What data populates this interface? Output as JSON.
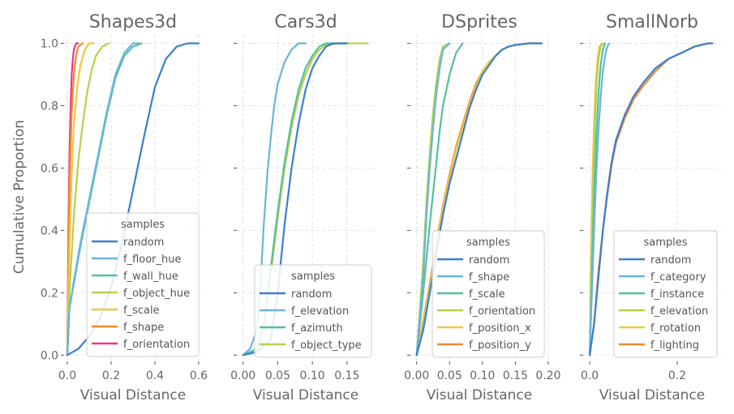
{
  "chart_data": [
    {
      "type": "line",
      "title": "Shapes3d",
      "xlabel": "Visual Distance",
      "ylabel": "Cumulative Proportion",
      "xlim": [
        -0.015,
        0.615
      ],
      "ylim": [
        -0.02,
        1.03
      ],
      "xticks": [
        0.0,
        0.2,
        0.4,
        0.6
      ],
      "xticklabels": [
        "0.0",
        "0.2",
        "0.4",
        "0.6"
      ],
      "yticks": [
        0.0,
        0.2,
        0.4,
        0.6,
        0.8,
        1.0
      ],
      "yticklabels": [
        "0.0",
        "0.2",
        "0.4",
        "0.6",
        "0.8",
        "1.0"
      ],
      "grid": true,
      "legend": {
        "title": "samples",
        "placement": "lower-right"
      },
      "series": [
        {
          "name": "random",
          "color": "#3a7fcf",
          "x": [
            0.0,
            0.05,
            0.1,
            0.15,
            0.2,
            0.25,
            0.3,
            0.35,
            0.4,
            0.45,
            0.5,
            0.55,
            0.6
          ],
          "y": [
            0.0,
            0.02,
            0.06,
            0.12,
            0.22,
            0.36,
            0.53,
            0.7,
            0.86,
            0.95,
            0.99,
            1.0,
            1.0
          ]
        },
        {
          "name": "f_floor_hue",
          "color": "#6ab4dd",
          "x": [
            0.0,
            0.01,
            0.03,
            0.06,
            0.1,
            0.14,
            0.18,
            0.22,
            0.26,
            0.3,
            0.33
          ],
          "y": [
            0.0,
            0.15,
            0.24,
            0.36,
            0.5,
            0.64,
            0.78,
            0.9,
            0.97,
            1.0,
            1.0
          ]
        },
        {
          "name": "f_wall_hue",
          "color": "#55bfa0",
          "x": [
            0.0,
            0.01,
            0.03,
            0.06,
            0.1,
            0.14,
            0.18,
            0.22,
            0.26,
            0.3,
            0.34
          ],
          "y": [
            0.0,
            0.15,
            0.23,
            0.35,
            0.49,
            0.63,
            0.77,
            0.89,
            0.96,
            0.99,
            1.0
          ]
        },
        {
          "name": "f_object_hue",
          "color": "#b3d34a",
          "x": [
            0.0,
            0.01,
            0.03,
            0.05,
            0.07,
            0.09,
            0.11,
            0.13,
            0.16,
            0.19
          ],
          "y": [
            0.0,
            0.2,
            0.45,
            0.62,
            0.74,
            0.84,
            0.91,
            0.96,
            0.99,
            1.0
          ]
        },
        {
          "name": "f_scale",
          "color": "#f3c540",
          "x": [
            0.0,
            0.01,
            0.02,
            0.03,
            0.045,
            0.06,
            0.08,
            0.1,
            0.12
          ],
          "y": [
            0.0,
            0.35,
            0.58,
            0.74,
            0.86,
            0.93,
            0.98,
            1.0,
            1.0
          ]
        },
        {
          "name": "f_shape",
          "color": "#ee8a2f",
          "x": [
            0.0,
            0.005,
            0.01,
            0.02,
            0.03,
            0.04,
            0.05,
            0.07
          ],
          "y": [
            0.0,
            0.3,
            0.55,
            0.78,
            0.9,
            0.96,
            0.99,
            1.0
          ]
        },
        {
          "name": "f_orientation",
          "color": "#e8388f",
          "x": [
            0.0,
            0.005,
            0.01,
            0.015,
            0.02,
            0.025,
            0.03,
            0.04,
            0.05
          ],
          "y": [
            0.0,
            0.4,
            0.65,
            0.8,
            0.9,
            0.95,
            0.98,
            1.0,
            1.0
          ]
        }
      ]
    },
    {
      "type": "line",
      "title": "Cars3d",
      "xlabel": "Visual Distance",
      "xlim": [
        -0.009,
        0.19
      ],
      "ylim": [
        -0.02,
        1.03
      ],
      "xticks": [
        0.0,
        0.05,
        0.1,
        0.15
      ],
      "xticklabels": [
        "0.00",
        "0.05",
        "0.10",
        "0.15"
      ],
      "yticks": [
        0.0,
        0.2,
        0.4,
        0.6,
        0.8,
        1.0
      ],
      "grid": true,
      "legend": {
        "title": "samples",
        "placement": "lower-right"
      },
      "series": [
        {
          "name": "random",
          "color": "#3a7fcf",
          "x": [
            0.0,
            0.02,
            0.04,
            0.05,
            0.06,
            0.07,
            0.08,
            0.09,
            0.1,
            0.11,
            0.12,
            0.13,
            0.14,
            0.15
          ],
          "y": [
            0.0,
            0.01,
            0.05,
            0.2,
            0.42,
            0.6,
            0.74,
            0.85,
            0.92,
            0.96,
            0.99,
            1.0,
            1.0,
            1.0
          ]
        },
        {
          "name": "f_elevation",
          "color": "#6ab4dd",
          "x": [
            0.0,
            0.01,
            0.02,
            0.025,
            0.03,
            0.035,
            0.04,
            0.045,
            0.05,
            0.06,
            0.07,
            0.08,
            0.09
          ],
          "y": [
            0.0,
            0.02,
            0.08,
            0.22,
            0.42,
            0.58,
            0.7,
            0.8,
            0.87,
            0.94,
            0.98,
            1.0,
            1.0
          ]
        },
        {
          "name": "f_azimuth",
          "color": "#55bfa0",
          "x": [
            0.0,
            0.02,
            0.03,
            0.04,
            0.05,
            0.06,
            0.07,
            0.08,
            0.09,
            0.1,
            0.11,
            0.12,
            0.15
          ],
          "y": [
            0.0,
            0.02,
            0.1,
            0.28,
            0.46,
            0.62,
            0.75,
            0.85,
            0.92,
            0.96,
            0.99,
            1.0,
            1.0
          ]
        },
        {
          "name": "f_object_type",
          "color": "#b3d34a",
          "x": [
            0.0,
            0.02,
            0.03,
            0.04,
            0.05,
            0.06,
            0.07,
            0.08,
            0.09,
            0.1,
            0.11,
            0.12,
            0.14,
            0.18
          ],
          "y": [
            0.0,
            0.02,
            0.09,
            0.26,
            0.44,
            0.6,
            0.73,
            0.83,
            0.9,
            0.95,
            0.98,
            0.995,
            1.0,
            1.0
          ]
        }
      ]
    },
    {
      "type": "line",
      "title": "DSprites",
      "xlabel": "Visual Distance",
      "xlim": [
        -0.0095,
        0.2
      ],
      "ylim": [
        -0.02,
        1.03
      ],
      "xticks": [
        0.0,
        0.05,
        0.1,
        0.15,
        0.2
      ],
      "xticklabels": [
        "0.00",
        "0.05",
        "0.10",
        "0.15",
        "0.20"
      ],
      "yticks": [
        0.0,
        0.2,
        0.4,
        0.6,
        0.8,
        1.0
      ],
      "grid": true,
      "legend": {
        "title": "samples",
        "placement": "lower-right"
      },
      "series": [
        {
          "name": "random",
          "color": "#3a7fcf",
          "x": [
            0.0,
            0.01,
            0.02,
            0.03,
            0.04,
            0.05,
            0.06,
            0.07,
            0.08,
            0.09,
            0.1,
            0.11,
            0.12,
            0.13,
            0.14,
            0.15,
            0.17,
            0.19
          ],
          "y": [
            0.0,
            0.08,
            0.2,
            0.33,
            0.45,
            0.55,
            0.63,
            0.71,
            0.79,
            0.85,
            0.9,
            0.93,
            0.96,
            0.98,
            0.99,
            0.995,
            1.0,
            1.0
          ]
        },
        {
          "name": "f_shape",
          "color": "#6ab4dd",
          "x": [
            0.0,
            0.01,
            0.015,
            0.02,
            0.025,
            0.03,
            0.035,
            0.04,
            0.05
          ],
          "y": [
            0.0,
            0.25,
            0.45,
            0.6,
            0.73,
            0.84,
            0.92,
            0.98,
            1.0
          ]
        },
        {
          "name": "f_scale",
          "color": "#55bfa0",
          "x": [
            0.0,
            0.01,
            0.02,
            0.03,
            0.035,
            0.04,
            0.05,
            0.06,
            0.07
          ],
          "y": [
            0.0,
            0.2,
            0.42,
            0.62,
            0.72,
            0.8,
            0.9,
            0.97,
            1.0
          ]
        },
        {
          "name": "f_orientation",
          "color": "#b3d34a",
          "x": [
            0.0,
            0.01,
            0.015,
            0.02,
            0.025,
            0.03,
            0.035,
            0.04,
            0.05
          ],
          "y": [
            0.0,
            0.3,
            0.5,
            0.65,
            0.78,
            0.88,
            0.95,
            0.99,
            1.0
          ]
        },
        {
          "name": "f_position_x",
          "color": "#f3c540",
          "x": [
            0.0,
            0.01,
            0.02,
            0.03,
            0.04,
            0.05,
            0.06,
            0.07,
            0.08,
            0.09,
            0.1,
            0.11,
            0.12,
            0.13,
            0.14,
            0.15,
            0.17,
            0.19
          ],
          "y": [
            0.0,
            0.1,
            0.22,
            0.35,
            0.47,
            0.57,
            0.66,
            0.73,
            0.8,
            0.86,
            0.91,
            0.94,
            0.96,
            0.98,
            0.99,
            0.995,
            1.0,
            1.0
          ]
        },
        {
          "name": "f_position_y",
          "color": "#ee8a2f",
          "x": [
            0.0,
            0.01,
            0.02,
            0.03,
            0.04,
            0.05,
            0.06,
            0.07,
            0.08,
            0.09,
            0.1,
            0.11,
            0.12,
            0.13,
            0.14,
            0.15,
            0.17,
            0.19
          ],
          "y": [
            0.0,
            0.11,
            0.23,
            0.36,
            0.48,
            0.58,
            0.67,
            0.74,
            0.81,
            0.87,
            0.91,
            0.94,
            0.96,
            0.98,
            0.99,
            0.995,
            1.0,
            1.0
          ]
        }
      ]
    },
    {
      "type": "line",
      "title": "SmallNorb",
      "xlabel": "Visual Distance",
      "xlim": [
        -0.015,
        0.3
      ],
      "ylim": [
        -0.02,
        1.03
      ],
      "xticks": [
        0.0,
        0.2
      ],
      "xticklabels": [
        "0.0",
        "0.2"
      ],
      "yticks": [
        0.0,
        0.2,
        0.4,
        0.6,
        0.8,
        1.0
      ],
      "grid": true,
      "legend": {
        "title": "samples",
        "placement": "lower-right"
      },
      "series": [
        {
          "name": "random",
          "color": "#3a7fcf",
          "x": [
            0.0,
            0.01,
            0.02,
            0.03,
            0.04,
            0.05,
            0.06,
            0.08,
            0.1,
            0.12,
            0.15,
            0.18,
            0.21,
            0.24,
            0.27,
            0.28
          ],
          "y": [
            0.0,
            0.1,
            0.25,
            0.4,
            0.52,
            0.62,
            0.69,
            0.77,
            0.83,
            0.87,
            0.92,
            0.95,
            0.97,
            0.99,
            1.0,
            1.0
          ]
        },
        {
          "name": "f_category",
          "color": "#6ab4dd",
          "x": [
            0.0,
            0.005,
            0.01,
            0.015,
            0.02,
            0.025,
            0.03,
            0.035,
            0.04,
            0.045
          ],
          "y": [
            0.0,
            0.2,
            0.4,
            0.58,
            0.72,
            0.83,
            0.91,
            0.96,
            0.99,
            1.0
          ]
        },
        {
          "name": "f_instance",
          "color": "#55bfa0",
          "x": [
            0.0,
            0.005,
            0.01,
            0.015,
            0.02,
            0.025,
            0.03,
            0.035
          ],
          "y": [
            0.0,
            0.25,
            0.5,
            0.7,
            0.84,
            0.93,
            0.98,
            1.0
          ]
        },
        {
          "name": "f_elevation",
          "color": "#b3d34a",
          "x": [
            0.0,
            0.004,
            0.008,
            0.012,
            0.016,
            0.02,
            0.025,
            0.03
          ],
          "y": [
            0.0,
            0.3,
            0.55,
            0.75,
            0.88,
            0.95,
            0.99,
            1.0
          ]
        },
        {
          "name": "f_rotation",
          "color": "#f3c540",
          "x": [
            0.0,
            0.003,
            0.006,
            0.01,
            0.014,
            0.018,
            0.022,
            0.028
          ],
          "y": [
            0.0,
            0.3,
            0.55,
            0.75,
            0.88,
            0.95,
            0.99,
            1.0
          ]
        },
        {
          "name": "f_lighting",
          "color": "#ee8a2f",
          "x": [
            0.0,
            0.01,
            0.02,
            0.03,
            0.04,
            0.05,
            0.06,
            0.08,
            0.1,
            0.12,
            0.15,
            0.18,
            0.21,
            0.24,
            0.27,
            0.28
          ],
          "y": [
            0.0,
            0.1,
            0.27,
            0.4,
            0.51,
            0.61,
            0.68,
            0.76,
            0.82,
            0.86,
            0.91,
            0.95,
            0.97,
            0.99,
            1.0,
            1.0
          ]
        }
      ]
    }
  ]
}
